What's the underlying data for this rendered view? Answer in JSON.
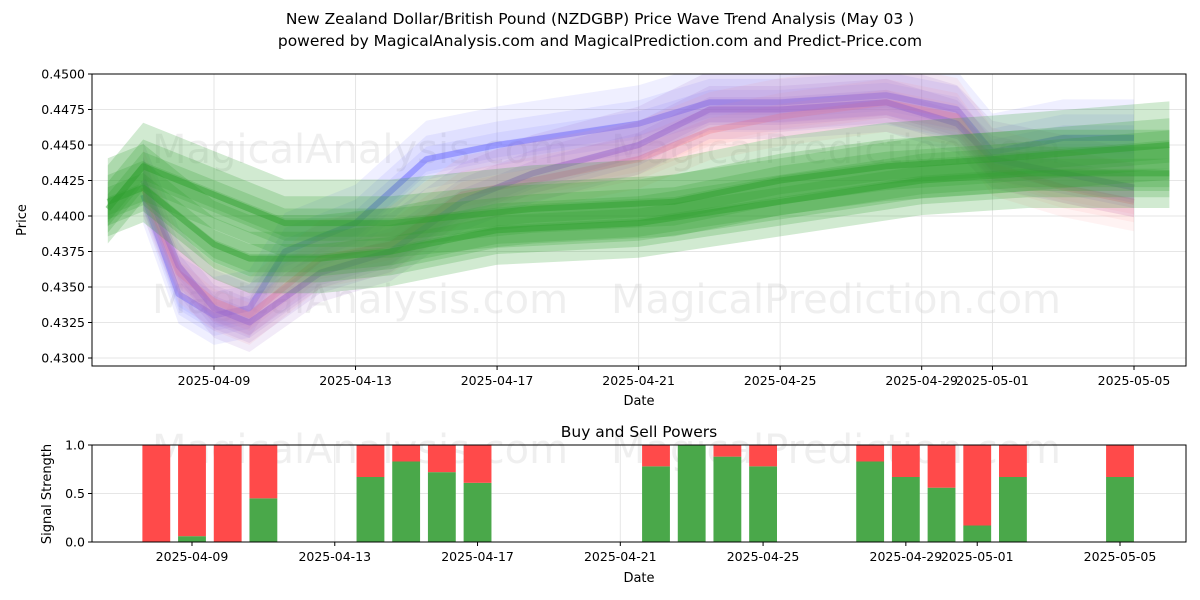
{
  "title_line1": "New Zealand Dollar/British Pound (NZDGBP) Price Wave Trend Analysis (May 03 )",
  "title_line2": "powered by MagicalAnalysis.com and MagicalPrediction.com and Predict-Price.com",
  "watermarks": [
    "MagicalAnalysis.com",
    "MagicalPrediction.com"
  ],
  "colors": {
    "blue": "#6666ff",
    "pink": "#ff9999",
    "purple": "#9966cc",
    "green": "#2ca02c",
    "buy": "#4aa84a",
    "sell": "#ff4a4a"
  },
  "chart_data": [
    {
      "type": "area",
      "title": "",
      "xlabel": "Date",
      "ylabel": "Price",
      "ylim": [
        0.4297,
        0.45
      ],
      "xlim": [
        "2025-04-06",
        "2025-05-06"
      ],
      "yticks": [
        "0.4300",
        "0.4325",
        "0.4350",
        "0.4375",
        "0.4400",
        "0.4425",
        "0.4450",
        "0.4475",
        "0.4500"
      ],
      "xticks": [
        "2025-04-09",
        "2025-04-13",
        "2025-04-17",
        "2025-04-21",
        "2025-04-25",
        "2025-04-29",
        "2025-05-01",
        "2025-05-05"
      ],
      "grid": true,
      "series": [
        {
          "color": "blue",
          "x": [
            "2025-04-07",
            "2025-04-08",
            "2025-04-09",
            "2025-04-10",
            "2025-04-11",
            "2025-04-13",
            "2025-04-15",
            "2025-04-17",
            "2025-04-21",
            "2025-04-23",
            "2025-04-25",
            "2025-04-28",
            "2025-04-30",
            "2025-05-01",
            "2025-05-03",
            "2025-05-05"
          ],
          "y": [
            0.4415,
            0.4345,
            0.433,
            0.4335,
            0.4375,
            0.4395,
            0.444,
            0.445,
            0.4465,
            0.448,
            0.448,
            0.4485,
            0.4475,
            0.4445,
            0.4455,
            0.4455
          ]
        },
        {
          "color": "pink",
          "x": [
            "2025-04-07",
            "2025-04-08",
            "2025-04-09",
            "2025-04-10",
            "2025-04-12",
            "2025-04-14",
            "2025-04-16",
            "2025-04-18",
            "2025-04-21",
            "2025-04-23",
            "2025-04-25",
            "2025-04-28",
            "2025-04-30",
            "2025-05-01",
            "2025-05-03",
            "2025-05-05"
          ],
          "y": [
            0.442,
            0.436,
            0.434,
            0.433,
            0.437,
            0.438,
            0.4415,
            0.4425,
            0.444,
            0.446,
            0.447,
            0.448,
            0.447,
            0.4435,
            0.442,
            0.441
          ]
        },
        {
          "color": "purple",
          "x": [
            "2025-04-07",
            "2025-04-08",
            "2025-04-09",
            "2025-04-10",
            "2025-04-12",
            "2025-04-14",
            "2025-04-16",
            "2025-04-18",
            "2025-04-21",
            "2025-04-23",
            "2025-04-25",
            "2025-04-28",
            "2025-04-30",
            "2025-05-01",
            "2025-05-03",
            "2025-05-05"
          ],
          "y": [
            0.4425,
            0.4365,
            0.4335,
            0.4325,
            0.436,
            0.4375,
            0.441,
            0.443,
            0.445,
            0.4475,
            0.4475,
            0.448,
            0.4465,
            0.444,
            0.443,
            0.442
          ]
        },
        {
          "color": "green",
          "x": [
            "2025-04-06",
            "2025-04-07",
            "2025-04-09",
            "2025-04-11",
            "2025-04-14",
            "2025-04-18",
            "2025-04-22",
            "2025-04-25",
            "2025-04-28",
            "2025-05-01",
            "2025-05-06"
          ],
          "y": [
            0.4405,
            0.4435,
            0.4415,
            0.4395,
            0.4395,
            0.4405,
            0.441,
            0.4425,
            0.4435,
            0.444,
            0.445
          ]
        },
        {
          "color": "green",
          "x": [
            "2025-04-06",
            "2025-04-07",
            "2025-04-09",
            "2025-04-10",
            "2025-04-12",
            "2025-04-14",
            "2025-04-17",
            "2025-04-21",
            "2025-04-25",
            "2025-04-29",
            "2025-05-02",
            "2025-05-06"
          ],
          "y": [
            0.441,
            0.442,
            0.438,
            0.437,
            0.437,
            0.4375,
            0.439,
            0.4395,
            0.441,
            0.4425,
            0.443,
            0.443
          ]
        }
      ]
    },
    {
      "type": "bar",
      "title": "Buy and Sell Powers",
      "xlabel": "Date",
      "ylabel": "Signal Strength",
      "ylim": [
        0,
        1.0
      ],
      "yticks": [
        "0.0",
        "0.5",
        "1.0"
      ],
      "xticks": [
        "2025-04-09",
        "2025-04-13",
        "2025-04-17",
        "2025-04-21",
        "2025-04-25",
        "2025-04-29",
        "2025-05-01",
        "2025-05-05"
      ],
      "grid": true,
      "categories": [
        "2025-04-08",
        "2025-04-09",
        "2025-04-10",
        "2025-04-11",
        "2025-04-14",
        "2025-04-15",
        "2025-04-16",
        "2025-04-17",
        "2025-04-22",
        "2025-04-23",
        "2025-04-24",
        "2025-04-25",
        "2025-04-28",
        "2025-04-29",
        "2025-04-30",
        "2025-05-01",
        "2025-05-02",
        "2025-05-05"
      ],
      "series": [
        {
          "name": "buy",
          "values": [
            0.0,
            0.06,
            0.0,
            0.45,
            0.67,
            0.83,
            0.72,
            0.61,
            0.78,
            1.0,
            0.88,
            0.78,
            0.83,
            0.67,
            0.56,
            0.17,
            0.67,
            0.67
          ]
        },
        {
          "name": "sell",
          "values": [
            1.0,
            0.94,
            1.0,
            0.55,
            0.33,
            0.17,
            0.28,
            0.39,
            0.22,
            0.0,
            0.12,
            0.22,
            0.17,
            0.33,
            0.44,
            0.83,
            0.33,
            0.33
          ]
        }
      ]
    }
  ]
}
